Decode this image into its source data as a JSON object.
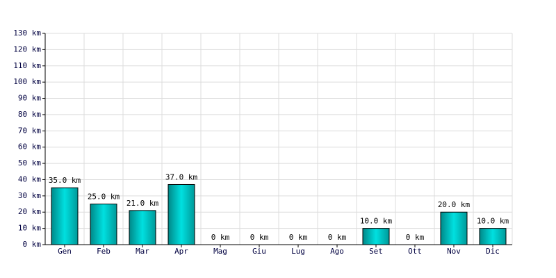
{
  "chart_data": {
    "type": "bar",
    "categories": [
      "Gen",
      "Feb",
      "Mar",
      "Apr",
      "Mag",
      "Giu",
      "Lug",
      "Ago",
      "Set",
      "Ott",
      "Nov",
      "Dic"
    ],
    "values": [
      35,
      25,
      21,
      37,
      0,
      0,
      0,
      0,
      10,
      0,
      20,
      10
    ],
    "value_labels": [
      "35.0 km",
      "25.0 km",
      "21.0 km",
      "37.0 km",
      "0 km",
      "0 km",
      "0 km",
      "0 km",
      "10.0 km",
      "0 km",
      "20.0 km",
      "10.0 km"
    ],
    "color": "#00e0e0",
    "ylim": [
      0,
      130
    ],
    "yticks": [
      {
        "value": 0,
        "label": "0 km"
      },
      {
        "value": 10,
        "label": "10 km"
      },
      {
        "value": 20,
        "label": "20 km"
      },
      {
        "value": 30,
        "label": "30 km"
      },
      {
        "value": 40,
        "label": "40 km"
      },
      {
        "value": 50,
        "label": "50 km"
      },
      {
        "value": 60,
        "label": "60 km"
      },
      {
        "value": 70,
        "label": "70 km"
      },
      {
        "value": 80,
        "label": "80 km"
      },
      {
        "value": 90,
        "label": "90 km"
      },
      {
        "value": 100,
        "label": "100 km"
      },
      {
        "value": 110,
        "label": "110 km"
      },
      {
        "value": 120,
        "label": "120 km"
      },
      {
        "value": 130,
        "label": "130 km"
      }
    ],
    "grid": true
  }
}
